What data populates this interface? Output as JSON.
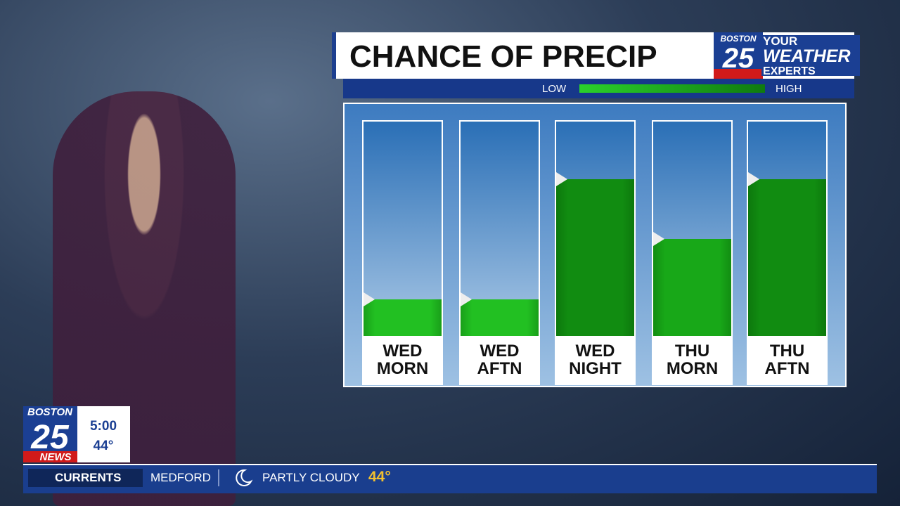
{
  "chart_data": {
    "type": "bar",
    "title": "CHANCE OF PRECIP",
    "legend_low": "LOW",
    "legend_high": "HIGH",
    "categories": [
      "WED MORN",
      "WED AFTN",
      "WED NIGHT",
      "THU MORN",
      "THU AFTN"
    ],
    "values": [
      17,
      17,
      73,
      45,
      73
    ],
    "colors": [
      "#22c022",
      "#22c022",
      "#118c11",
      "#18a818",
      "#118c11"
    ],
    "ylim": [
      0,
      100
    ]
  },
  "logo": {
    "city": "BOSTON",
    "channel": "25",
    "line1": "YOUR",
    "line2": "WEATHER",
    "line3": "EXPERTS"
  },
  "bug": {
    "city": "BOSTON",
    "channel": "25",
    "brand": "NEWS",
    "time": "5:00",
    "temp": "44°"
  },
  "ticker": {
    "label": "CURRENTS",
    "location": "MEDFORD",
    "condition": "PARTLY CLOUDY",
    "temp": "44°"
  }
}
